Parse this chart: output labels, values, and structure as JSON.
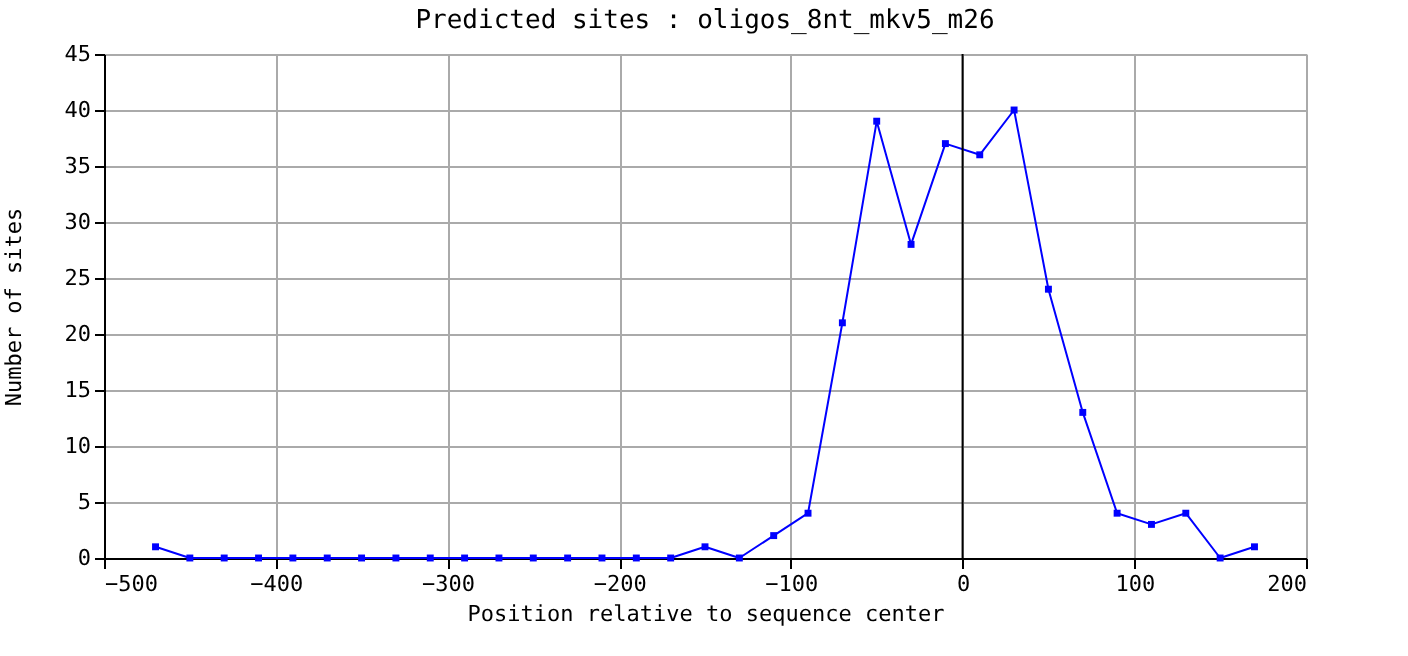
{
  "chart_data": {
    "type": "line",
    "title": "Predicted sites : oligos_8nt_mkv5_m26",
    "xlabel": "Position relative to sequence center",
    "ylabel": "Number of sites",
    "x": [
      -470,
      -450,
      -430,
      -410,
      -390,
      -370,
      -350,
      -330,
      -310,
      -290,
      -270,
      -250,
      -230,
      -210,
      -190,
      -170,
      -150,
      -130,
      -110,
      -90,
      -70,
      -50,
      -30,
      -10,
      10,
      30,
      50,
      70,
      90,
      110,
      130,
      150,
      170
    ],
    "series": [
      {
        "color": "#0000ff",
        "values": [
          1,
          0,
          0,
          0,
          0,
          0,
          0,
          0,
          0,
          0,
          0,
          0,
          0,
          0,
          0,
          0,
          1,
          0,
          2,
          4,
          21,
          39,
          28,
          37,
          36,
          40,
          24,
          13,
          4,
          3,
          4,
          0,
          1
        ]
      }
    ],
    "xlim": [
      -500,
      200
    ],
    "xticks": [
      -500,
      -400,
      -300,
      -200,
      -100,
      0,
      100,
      200
    ],
    "ylim": [
      0,
      45
    ],
    "yticks": [
      0,
      5,
      10,
      15,
      20,
      25,
      30,
      35,
      40,
      45
    ],
    "ref_lines": [
      {
        "axis": "x",
        "value": 0,
        "color": "#000000"
      }
    ],
    "grid": true,
    "marker": "square",
    "line_style": "solid"
  }
}
